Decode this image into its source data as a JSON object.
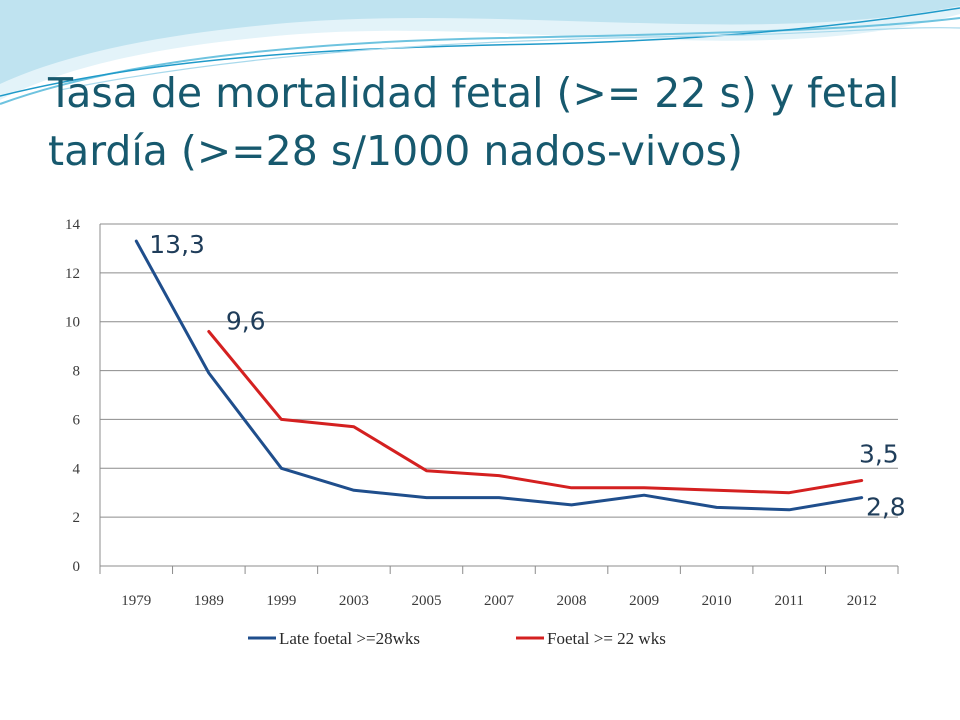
{
  "slide": {
    "title": "Tasa de mortalidad fetal (>= 22 s) y fetal tardía (>=28 s/1000 nados-vivos)"
  },
  "colors": {
    "title": "#17596e",
    "late_series": "#1f4e8c",
    "foetal_series": "#d42020",
    "grid": "#8c8c8c",
    "wave_light": "#bfe3f0",
    "wave_mid": "#6ec3df",
    "wave_dark": "#1f9ac9"
  },
  "chart_data": {
    "type": "line",
    "categories": [
      "1979",
      "1989",
      "1999",
      "2003",
      "2005",
      "2007",
      "2008",
      "2009",
      "2010",
      "2011",
      "2012"
    ],
    "series": [
      {
        "name": "Late foetal >=28wks",
        "values": [
          13.3,
          7.9,
          4.0,
          3.1,
          2.8,
          2.8,
          2.5,
          2.9,
          2.4,
          2.3,
          2.8
        ]
      },
      {
        "name": "Foetal >= 22 wks",
        "values": [
          null,
          9.6,
          6.0,
          5.7,
          3.9,
          3.7,
          3.2,
          3.2,
          3.1,
          3.0,
          3.5
        ]
      }
    ],
    "ylim": [
      0,
      14
    ],
    "yticks": [
      "0",
      "2",
      "4",
      "6",
      "8",
      "10",
      "12",
      "14"
    ],
    "grid": true,
    "legend_position": "bottom",
    "data_labels": [
      {
        "series": 0,
        "index": 0,
        "text": "13,3"
      },
      {
        "series": 1,
        "index": 1,
        "text": "9,6"
      },
      {
        "series": 1,
        "index": 10,
        "text": "3,5"
      },
      {
        "series": 0,
        "index": 10,
        "text": "2,8"
      }
    ]
  }
}
